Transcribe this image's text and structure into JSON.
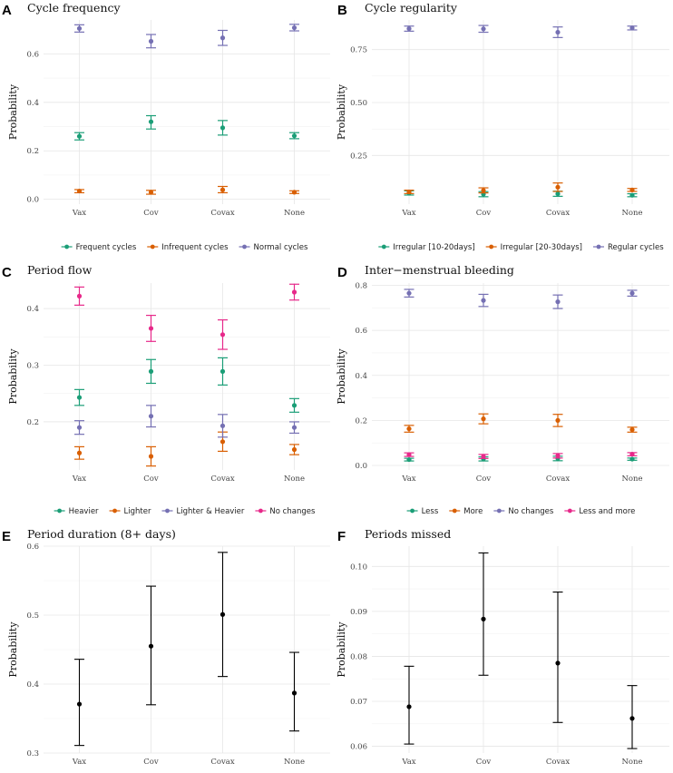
{
  "chart_data": [
    {
      "panel": "A",
      "type": "scatter",
      "title": "Cycle frequency",
      "ylabel": "Probability",
      "categories": [
        "Vax",
        "Cov",
        "Covax",
        "None"
      ],
      "ylim": [
        -0.02,
        0.74
      ],
      "yticks": [
        0.0,
        0.2,
        0.4,
        0.6
      ],
      "ytick_labels": [
        "0.0",
        "0.2",
        "0.4",
        "0.6"
      ],
      "series": [
        {
          "name": "Frequent cycles",
          "color": "#1b9e77",
          "values": [
            0.26,
            0.32,
            0.295,
            0.262
          ],
          "lower": [
            0.245,
            0.29,
            0.265,
            0.25
          ],
          "upper": [
            0.275,
            0.345,
            0.325,
            0.275
          ]
        },
        {
          "name": "Infrequent cycles",
          "color": "#d95f02",
          "values": [
            0.034,
            0.029,
            0.039,
            0.029
          ],
          "lower": [
            0.027,
            0.021,
            0.027,
            0.024
          ],
          "upper": [
            0.04,
            0.037,
            0.053,
            0.035
          ]
        },
        {
          "name": "Normal cycles",
          "color": "#7570b3",
          "values": [
            0.705,
            0.652,
            0.666,
            0.708
          ],
          "lower": [
            0.69,
            0.625,
            0.635,
            0.695
          ],
          "upper": [
            0.72,
            0.68,
            0.697,
            0.722
          ]
        }
      ]
    },
    {
      "panel": "B",
      "type": "scatter",
      "title": "Cycle regularity",
      "ylabel": "Probability",
      "categories": [
        "Vax",
        "Cov",
        "Covax",
        "None"
      ],
      "ylim": [
        0.02,
        0.89
      ],
      "yticks": [
        0.25,
        0.5,
        0.75
      ],
      "ytick_labels": [
        "0.25",
        "0.50",
        "0.75"
      ],
      "series": [
        {
          "name": "Irregular [10-20days]",
          "color": "#1b9e77",
          "values": [
            0.073,
            0.067,
            0.069,
            0.062
          ],
          "lower": [
            0.063,
            0.055,
            0.057,
            0.055
          ],
          "upper": [
            0.083,
            0.079,
            0.081,
            0.069
          ]
        },
        {
          "name": "Irregular [20-30days]",
          "color": "#d95f02",
          "values": [
            0.078,
            0.085,
            0.1,
            0.087
          ],
          "lower": [
            0.07,
            0.073,
            0.08,
            0.08
          ],
          "upper": [
            0.086,
            0.097,
            0.12,
            0.094
          ]
        },
        {
          "name": "Regular cycles",
          "color": "#7570b3",
          "values": [
            0.849,
            0.848,
            0.832,
            0.852
          ],
          "lower": [
            0.837,
            0.832,
            0.807,
            0.843
          ],
          "upper": [
            0.861,
            0.864,
            0.857,
            0.861
          ]
        }
      ]
    },
    {
      "panel": "C",
      "type": "scatter",
      "title": "Period flow",
      "ylabel": "Probability",
      "categories": [
        "Vax",
        "Cov",
        "Covax",
        "None"
      ],
      "ylim": [
        0.115,
        0.445
      ],
      "yticks": [
        0.2,
        0.3,
        0.4
      ],
      "ytick_labels": [
        "0.2",
        "0.3",
        "0.4"
      ],
      "series": [
        {
          "name": "Heavier",
          "color": "#1b9e77",
          "values": [
            0.243,
            0.289,
            0.289,
            0.229
          ],
          "lower": [
            0.229,
            0.268,
            0.265,
            0.217
          ],
          "upper": [
            0.257,
            0.31,
            0.313,
            0.241
          ]
        },
        {
          "name": "Lighter",
          "color": "#d95f02",
          "values": [
            0.145,
            0.139,
            0.165,
            0.151
          ],
          "lower": [
            0.134,
            0.122,
            0.148,
            0.142
          ],
          "upper": [
            0.156,
            0.156,
            0.182,
            0.16
          ]
        },
        {
          "name": "Lighter & Heavier",
          "color": "#7570b3",
          "values": [
            0.19,
            0.21,
            0.193,
            0.19
          ],
          "lower": [
            0.178,
            0.191,
            0.173,
            0.18
          ],
          "upper": [
            0.202,
            0.229,
            0.213,
            0.2
          ]
        },
        {
          "name": "No changes",
          "color": "#e7298a",
          "values": [
            0.422,
            0.365,
            0.354,
            0.429
          ],
          "lower": [
            0.406,
            0.342,
            0.328,
            0.415
          ],
          "upper": [
            0.438,
            0.388,
            0.38,
            0.443
          ]
        }
      ]
    },
    {
      "panel": "D",
      "type": "scatter",
      "title": "Inter−menstrual bleeding",
      "ylabel": "Probability",
      "categories": [
        "Vax",
        "Cov",
        "Covax",
        "None"
      ],
      "ylim": [
        -0.02,
        0.81
      ],
      "yticks": [
        0.0,
        0.2,
        0.4,
        0.6,
        0.8
      ],
      "ytick_labels": [
        "0.0",
        "0.2",
        "0.4",
        "0.6",
        "0.8"
      ],
      "series": [
        {
          "name": "Less",
          "color": "#1b9e77",
          "values": [
            0.026,
            0.029,
            0.031,
            0.028
          ],
          "lower": [
            0.02,
            0.02,
            0.021,
            0.023
          ],
          "upper": [
            0.032,
            0.038,
            0.041,
            0.033
          ]
        },
        {
          "name": "More",
          "color": "#d95f02",
          "values": [
            0.163,
            0.207,
            0.2,
            0.159
          ],
          "lower": [
            0.148,
            0.185,
            0.173,
            0.148
          ],
          "upper": [
            0.178,
            0.229,
            0.227,
            0.17
          ]
        },
        {
          "name": "No changes",
          "color": "#7570b3",
          "values": [
            0.765,
            0.733,
            0.727,
            0.765
          ],
          "lower": [
            0.748,
            0.706,
            0.697,
            0.752
          ],
          "upper": [
            0.782,
            0.76,
            0.757,
            0.778
          ]
        },
        {
          "name": "Less and more",
          "color": "#e7298a",
          "values": [
            0.048,
            0.04,
            0.043,
            0.05
          ],
          "lower": [
            0.04,
            0.031,
            0.033,
            0.043
          ],
          "upper": [
            0.056,
            0.049,
            0.053,
            0.057
          ]
        }
      ]
    },
    {
      "panel": "E",
      "type": "scatter",
      "title": "Period duration (8+ days)",
      "ylabel": "Probability",
      "categories": [
        "Vax",
        "Cov",
        "Covax",
        "None"
      ],
      "ylim": [
        0.3,
        0.6
      ],
      "yticks": [
        0.3,
        0.4,
        0.5,
        0.6
      ],
      "ytick_labels": [
        "0.3",
        "0.4",
        "0.5",
        "0.6"
      ],
      "series": [
        {
          "name": "",
          "color": "#000000",
          "values": [
            0.371,
            0.455,
            0.501,
            0.387
          ],
          "lower": [
            0.311,
            0.37,
            0.411,
            0.332
          ],
          "upper": [
            0.436,
            0.542,
            0.591,
            0.446
          ]
        }
      ]
    },
    {
      "panel": "F",
      "type": "scatter",
      "title": "Periods missed",
      "ylabel": "Probability",
      "categories": [
        "Vax",
        "Cov",
        "Covax",
        "None"
      ],
      "ylim": [
        0.0585,
        0.1045
      ],
      "yticks": [
        0.06,
        0.07,
        0.08,
        0.09,
        0.1
      ],
      "ytick_labels": [
        "0.06",
        "0.07",
        "0.08",
        "0.09",
        "0.10"
      ],
      "series": [
        {
          "name": "",
          "color": "#000000",
          "values": [
            0.0688,
            0.0883,
            0.0785,
            0.0662
          ],
          "lower": [
            0.0605,
            0.0758,
            0.0653,
            0.0595
          ],
          "upper": [
            0.0778,
            0.103,
            0.0943,
            0.0735
          ]
        }
      ]
    }
  ]
}
